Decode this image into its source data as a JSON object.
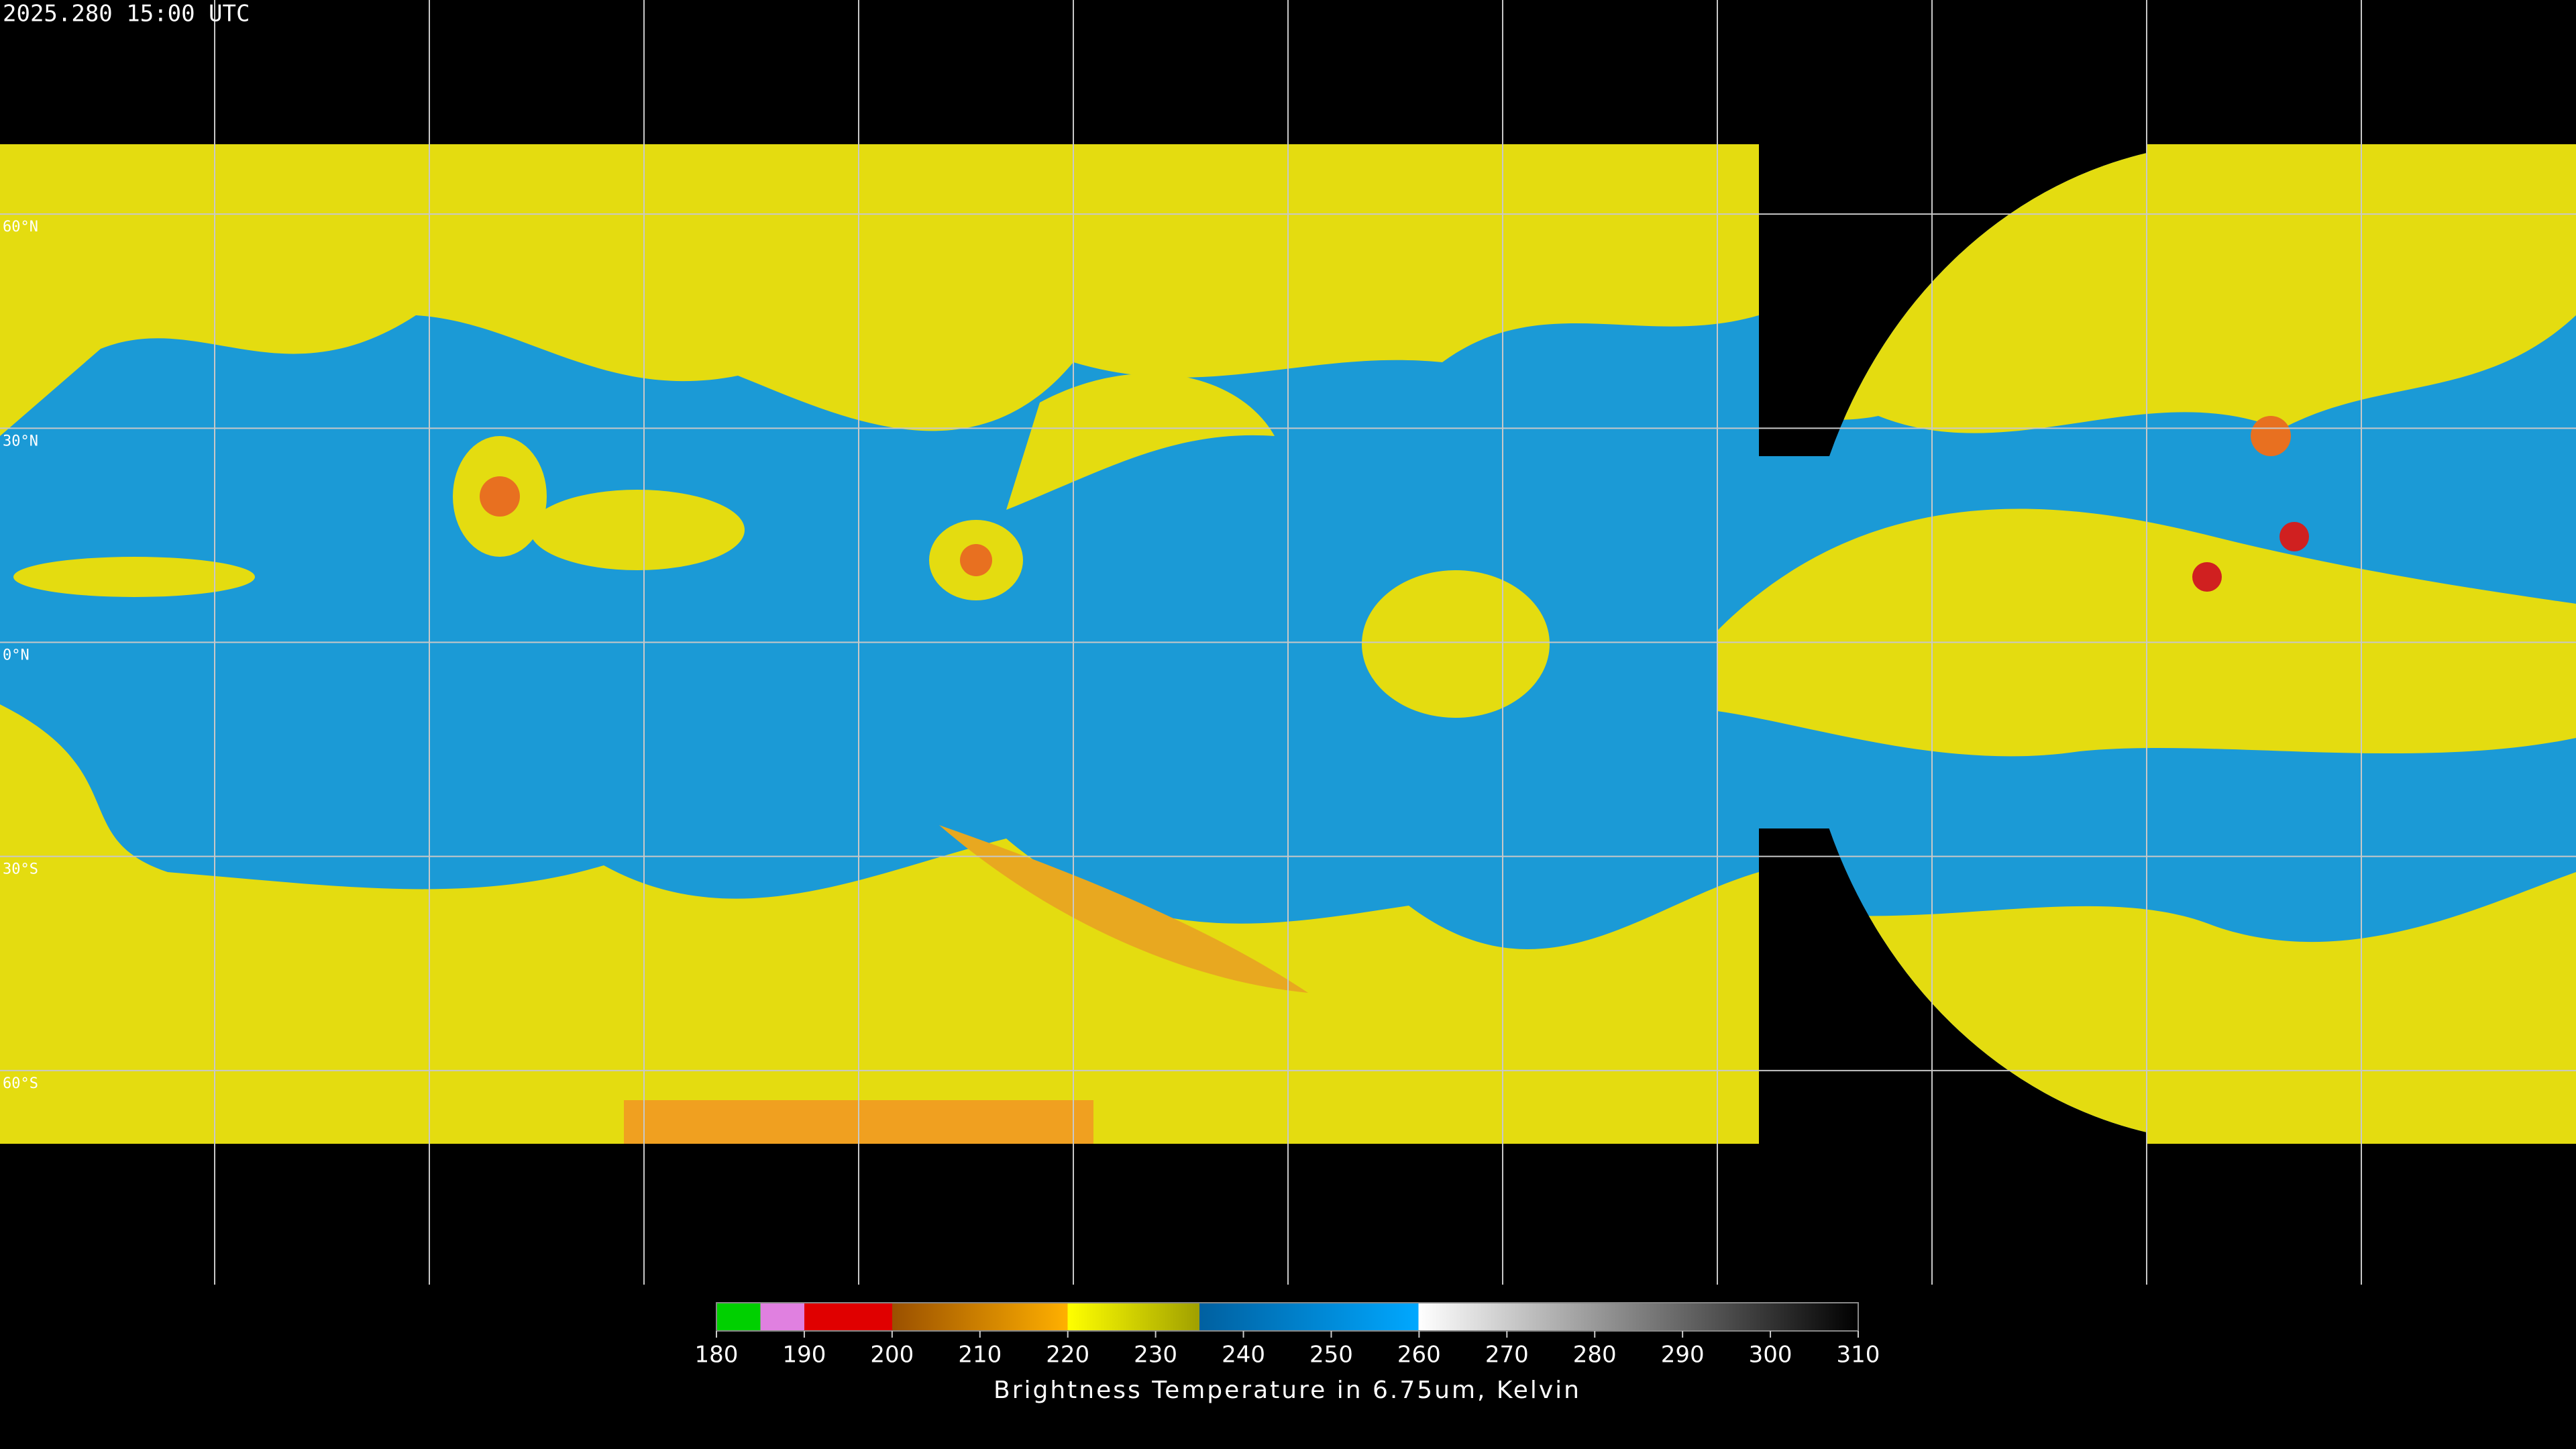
{
  "header": {
    "timestamp": "2025.280 15:00 UTC"
  },
  "map": {
    "lat_labels": [
      "60°N",
      "30°N",
      "0°N",
      "30°S",
      "60°S"
    ]
  },
  "colorbar": {
    "ticks": [
      180,
      190,
      200,
      210,
      220,
      230,
      240,
      250,
      260,
      270,
      280,
      290,
      300,
      310
    ],
    "label": "Brightness Temperature in 6.75um, Kelvin"
  }
}
